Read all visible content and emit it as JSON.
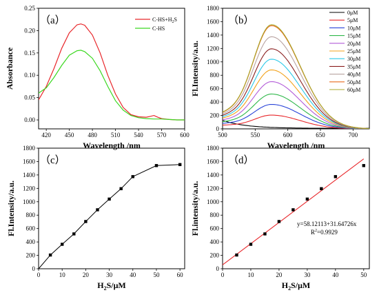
{
  "chart_data": [
    {
      "type": "line",
      "panel_label": "（a）",
      "xlabel": "Wavelength /nm",
      "ylabel": "Absorbance",
      "xlim": [
        410,
        600
      ],
      "ylim": [
        -0.02,
        0.25
      ],
      "xticks": [
        420,
        450,
        480,
        510,
        540,
        570,
        600
      ],
      "yticks": [
        0.0,
        0.05,
        0.1,
        0.15,
        0.2,
        0.25
      ],
      "ytick_labels": [
        "0.00",
        "0.05",
        "0.10",
        "0.15",
        "0.20",
        "0.25"
      ],
      "legend_position": "top-right",
      "series": [
        {
          "name": "C-HS+H",
          "name_sub": "2",
          "name_tail": "S",
          "color": "#e8262a",
          "x": [
            410,
            420,
            430,
            440,
            450,
            460,
            465,
            470,
            480,
            490,
            500,
            510,
            520,
            530,
            540,
            550,
            555,
            560,
            565,
            570,
            580,
            590,
            600
          ],
          "y": [
            0.045,
            0.075,
            0.115,
            0.16,
            0.195,
            0.213,
            0.215,
            0.212,
            0.19,
            0.15,
            0.1,
            0.058,
            0.028,
            0.012,
            0.007,
            0.006,
            0.008,
            0.01,
            0.006,
            0.003,
            0.001,
            0.0,
            0.0
          ]
        },
        {
          "name": "C-HS",
          "color": "#3bd820",
          "x": [
            410,
            420,
            430,
            440,
            450,
            460,
            465,
            470,
            480,
            490,
            500,
            510,
            520,
            530,
            540,
            550,
            560,
            570,
            580,
            590,
            600
          ],
          "y": [
            0.06,
            0.072,
            0.095,
            0.122,
            0.145,
            0.155,
            0.156,
            0.153,
            0.138,
            0.11,
            0.075,
            0.043,
            0.022,
            0.01,
            0.005,
            0.003,
            0.002,
            0.002,
            0.001,
            0.0,
            0.0
          ]
        }
      ]
    },
    {
      "type": "line",
      "panel_label": "（b）",
      "xlabel": "Wavelength /nm",
      "ylabel": "Fl.Intensity/a.u.",
      "xlim": [
        500,
        725
      ],
      "ylim": [
        0,
        1800
      ],
      "xticks": [
        500,
        550,
        600,
        650,
        700
      ],
      "yticks": [
        0,
        200,
        400,
        600,
        800,
        1000,
        1200,
        1400,
        1600,
        1800
      ],
      "legend_position": "right",
      "curve_model": "spectrum shape peaking at ~575 nm, base intensity at 500 nm and peak value per series",
      "series": [
        {
          "name": "0μM",
          "color": "#000000",
          "peak": 0,
          "start": 120
        },
        {
          "name": "5μM",
          "color": "#e8262a",
          "peak": 205,
          "start": 50
        },
        {
          "name": "10μM",
          "color": "#2742d8",
          "peak": 365,
          "start": 70
        },
        {
          "name": "15μM",
          "color": "#2fb84a",
          "peak": 520,
          "start": 90
        },
        {
          "name": "20μM",
          "color": "#b25ad8",
          "peak": 705,
          "start": 110
        },
        {
          "name": "25μM",
          "color": "#f2a21b",
          "peak": 880,
          "start": 130
        },
        {
          "name": "30μM",
          "color": "#2ac8e8",
          "peak": 1040,
          "start": 145
        },
        {
          "name": "35μM",
          "color": "#8a1e1e",
          "peak": 1195,
          "start": 160
        },
        {
          "name": "40μM",
          "color": "#b8a2a0",
          "peak": 1375,
          "start": 175
        },
        {
          "name": "50μM",
          "color": "#e86a1e",
          "peak": 1540,
          "start": 190
        },
        {
          "name": "60μM",
          "color": "#a8a82e",
          "peak": 1555,
          "start": 195
        }
      ]
    },
    {
      "type": "line",
      "panel_label": "（c）",
      "xlabel": "H",
      "xlabel_sub": "2",
      "xlabel_tail": "S/μM",
      "ylabel": "Fl.Intensity/a.u.",
      "xlim": [
        0,
        62
      ],
      "ylim": [
        0,
        1800
      ],
      "xticks": [
        0,
        10,
        20,
        30,
        40,
        50,
        60
      ],
      "yticks": [
        0,
        200,
        400,
        600,
        800,
        1000,
        1200,
        1400,
        1600,
        1800
      ],
      "series": [
        {
          "name": "",
          "color": "#000000",
          "x": [
            0,
            5,
            10,
            15,
            20,
            25,
            30,
            35,
            40,
            50,
            60
          ],
          "y": [
            0,
            205,
            365,
            520,
            705,
            880,
            1040,
            1195,
            1375,
            1540,
            1555
          ]
        }
      ]
    },
    {
      "type": "scatter",
      "panel_label": "（d）",
      "xlabel": "H",
      "xlabel_sub": "2",
      "xlabel_tail": "S/μM",
      "ylabel": "Fl.intensity/a.u.",
      "xlim": [
        0,
        52
      ],
      "ylim": [
        0,
        1800
      ],
      "xticks": [
        0,
        10,
        20,
        30,
        40,
        50
      ],
      "yticks": [
        0,
        200,
        400,
        600,
        800,
        1000,
        1200,
        1400,
        1600,
        1800
      ],
      "equation": "y=58.12113+31.64726x",
      "r2_label": "R",
      "r2_sup": "2",
      "r2_value": "=0.9929",
      "fit": {
        "intercept": 58.12113,
        "slope": 31.64726,
        "x_range": [
          0,
          50
        ],
        "color": "#e8262a"
      },
      "series": [
        {
          "name": "",
          "color": "#000000",
          "x": [
            5,
            10,
            15,
            20,
            25,
            30,
            35,
            40,
            50
          ],
          "y": [
            205,
            365,
            520,
            705,
            880,
            1040,
            1195,
            1375,
            1540
          ]
        }
      ]
    }
  ]
}
